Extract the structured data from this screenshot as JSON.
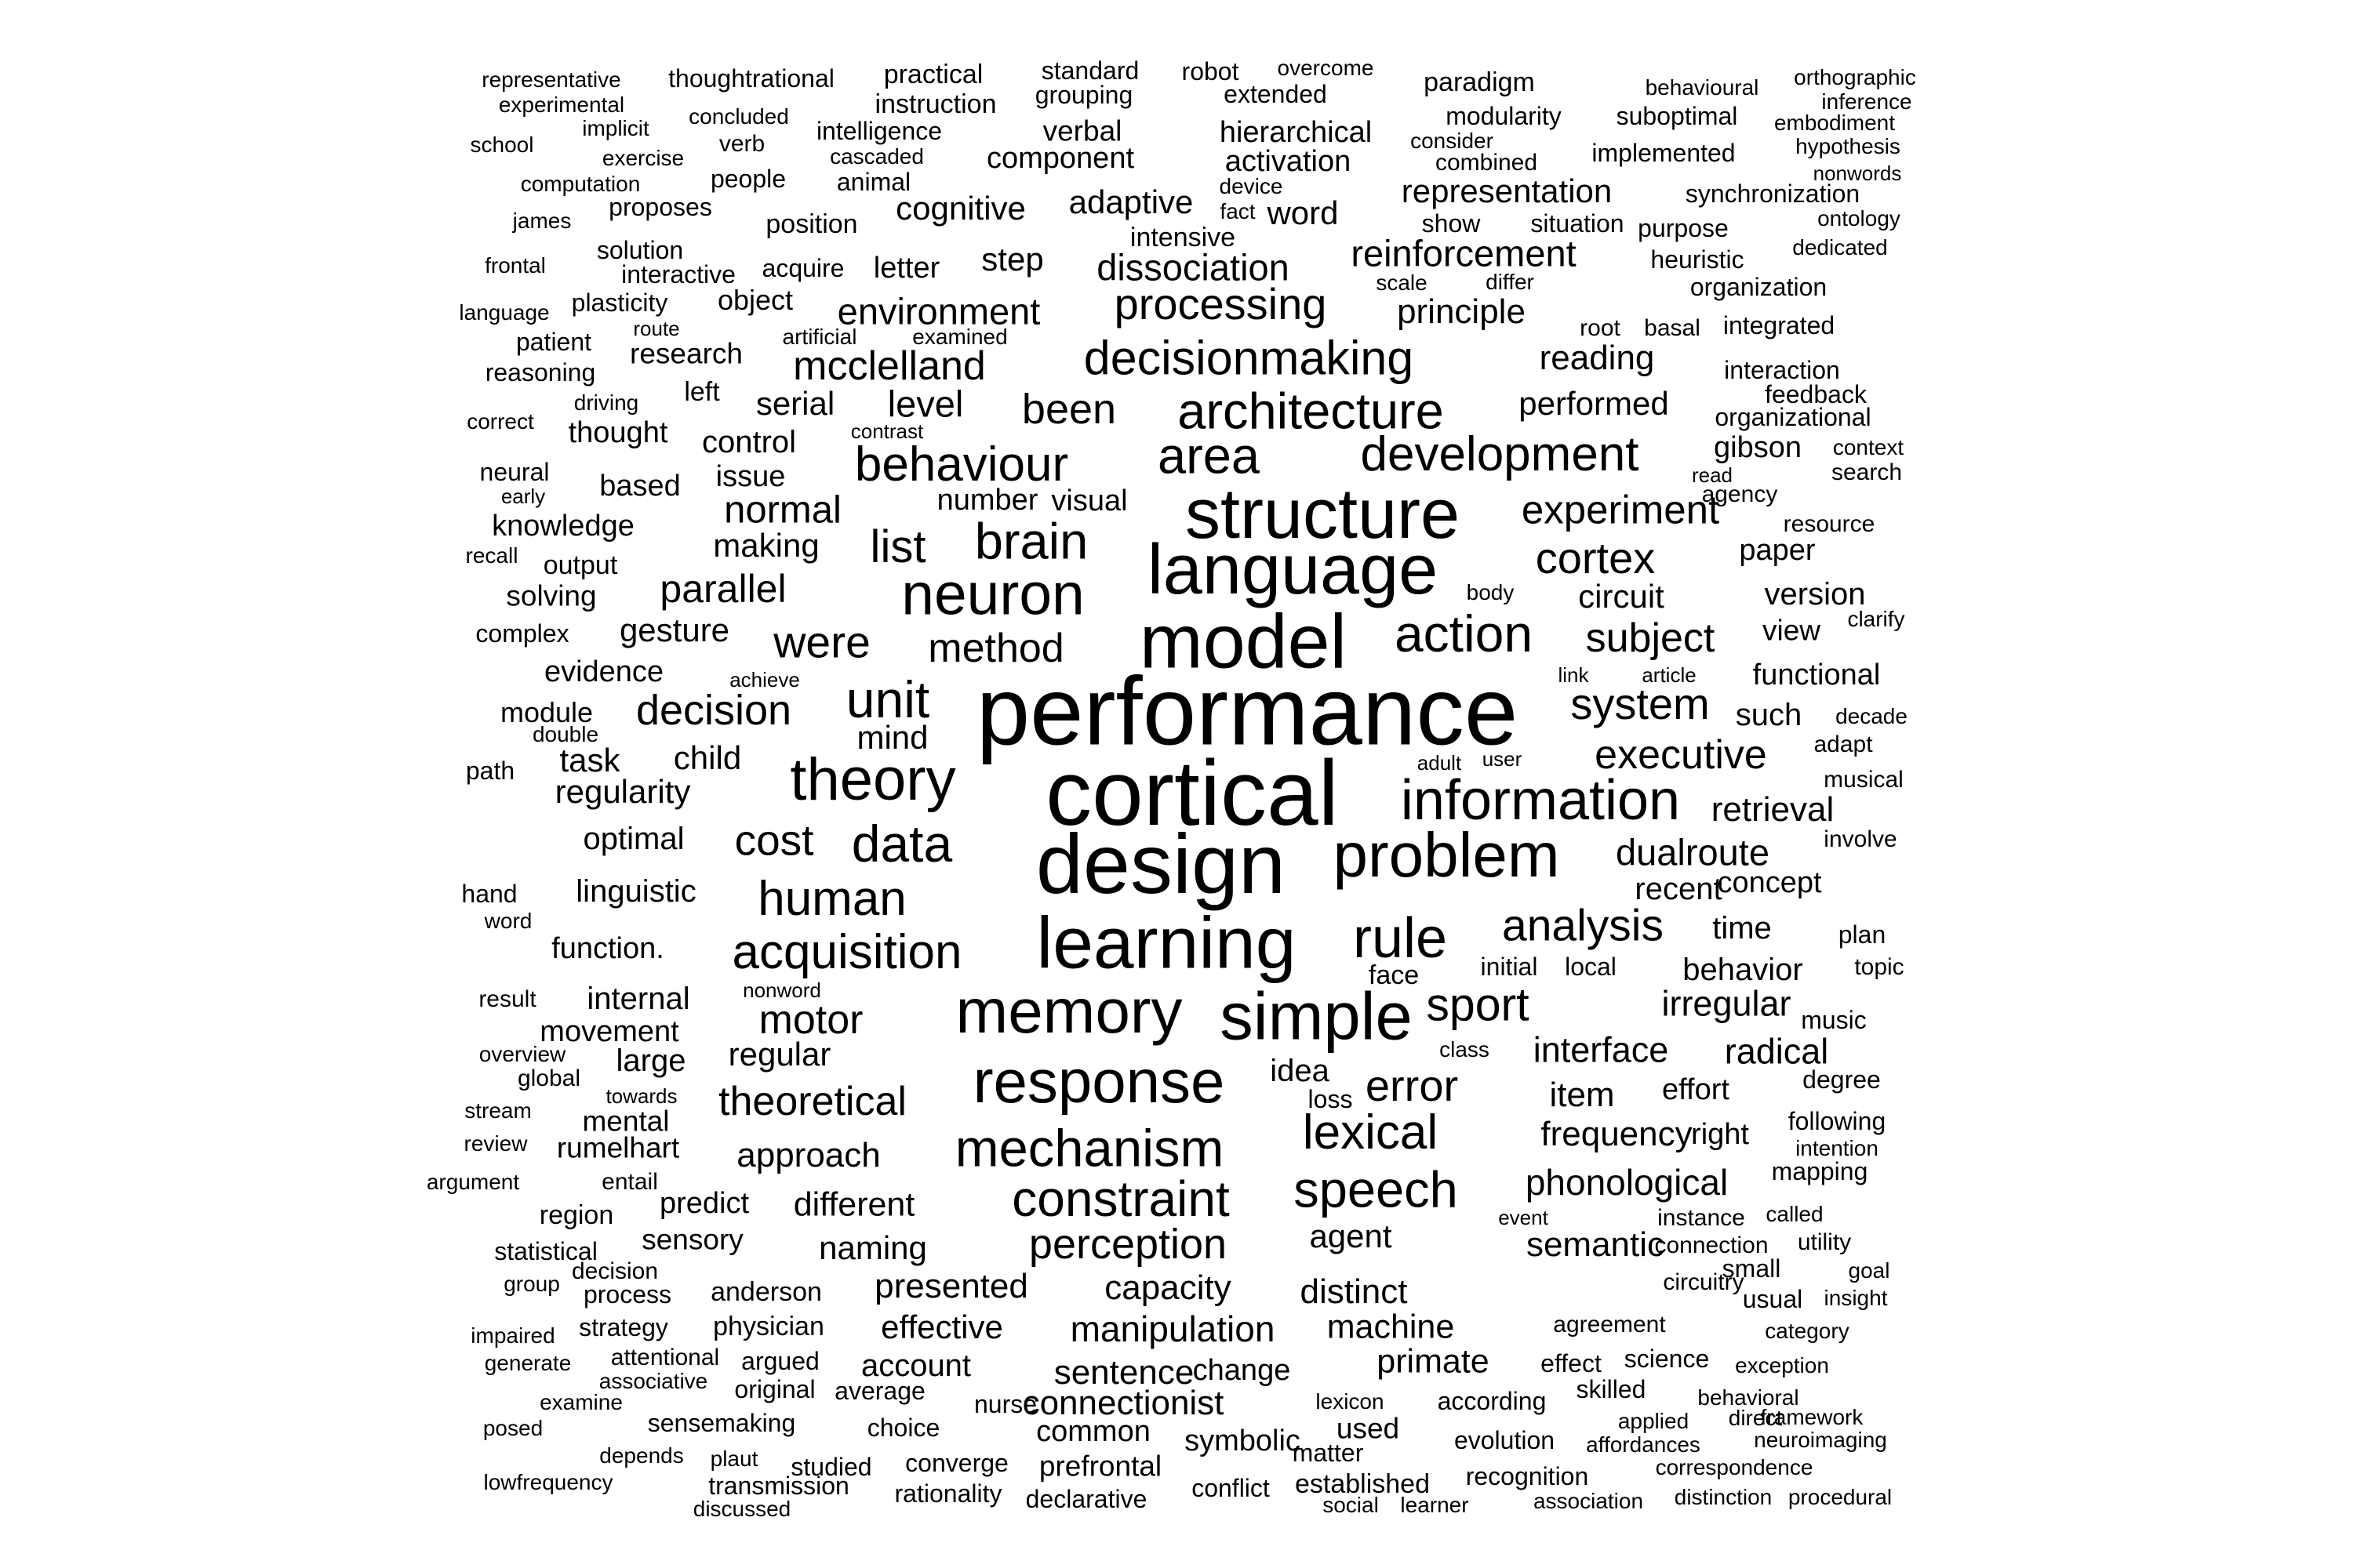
{
  "word_cloud": {
    "words": [
      "performance",
      "cortical",
      "design",
      "model",
      "language",
      "structure",
      "learning",
      "memory",
      "simple",
      "response",
      "neuron",
      "theory",
      "problem",
      "information",
      "mechanism",
      "rule",
      "architecture",
      "area",
      "development",
      "behaviour",
      "brain",
      "action",
      "decisionmaking",
      "acquisition",
      "lexical",
      "speech",
      "constraint",
      "unit",
      "data",
      "human",
      "analysis",
      "sport",
      "system",
      "cortex",
      "experiment",
      "processing",
      "error",
      "perception",
      "were",
      "method",
      "decision",
      "executive",
      "subject",
      "list",
      "mcclelland",
      "been",
      "motor",
      "cost",
      "theoretical",
      "parallel",
      "normal",
      "dualroute",
      "retrieval",
      "dissociation",
      "reinforcement",
      "environment",
      "phonological",
      "manipulation",
      "semantic",
      "irregular",
      "interface",
      "radical",
      "frequency",
      "approach",
      "distinct",
      "presented",
      "capacity",
      "sentence",
      "connectionist",
      "machine",
      "primate",
      "agent",
      "different",
      "naming",
      "mind",
      "child",
      "task",
      "regularity",
      "optimal",
      "linguistic",
      "function.",
      "internal",
      "movement",
      "large",
      "regular",
      "mental",
      "rumelhart",
      "predict",
      "sensory",
      "gesture",
      "evidence",
      "making",
      "issue",
      "control",
      "serial",
      "level",
      "step",
      "letter",
      "cognitive",
      "adaptive",
      "word",
      "representation",
      "component",
      "verbal",
      "hierarchical",
      "activation",
      "principle",
      "reading",
      "performed",
      "gibson",
      "circuit",
      "version",
      "paper",
      "functional",
      "view",
      "such",
      "recent",
      "concept",
      "time",
      "behavior",
      "item",
      "effort",
      "right",
      "following",
      "effective",
      "account",
      "common",
      "change",
      "according",
      "evolution",
      "recognition",
      "prefrontal",
      "symbolic",
      "matter",
      "used",
      "established",
      "conflict",
      "declarative",
      "rationality",
      "transmission",
      "converge",
      "studied",
      "sensemaking",
      "choice",
      "nurse",
      "original",
      "average",
      "argued",
      "physician",
      "anderson",
      "idea",
      "loss",
      "face",
      "initial",
      "local",
      "knowledge",
      "based",
      "thought",
      "solving",
      "output",
      "module",
      "path",
      "research",
      "reasoning",
      "left",
      "object",
      "plasticity",
      "solution",
      "position",
      "people",
      "verb",
      "thoughtrational",
      "representative",
      "experimental",
      "implicit",
      "concluded",
      "school",
      "exercise",
      "computation",
      "proposes",
      "james",
      "frontal",
      "language",
      "patient",
      "correct",
      "driving",
      "neural",
      "early",
      "recall",
      "complex",
      "double",
      "hand",
      "word",
      "result",
      "overview",
      "global",
      "stream",
      "review",
      "argument",
      "entail",
      "region",
      "statistical",
      "group",
      "decision",
      "process",
      "impaired",
      "strategy",
      "generate",
      "attentional",
      "associative",
      "examine",
      "posed",
      "depends",
      "plaut",
      "lowfrequency",
      "discussed",
      "practical",
      "instruction",
      "intelligence",
      "cascaded",
      "animal",
      "standard",
      "grouping",
      "robot",
      "extended",
      "overcome",
      "device",
      "fact",
      "intensive",
      "show",
      "situation",
      "scale",
      "differ",
      "root",
      "basal",
      "paradigm",
      "modularity",
      "consider",
      "combined",
      "implemented",
      "suboptimal",
      "behavioural",
      "orthographic",
      "inference",
      "embodiment",
      "hypothesis",
      "nonwords",
      "synchronization",
      "ontology",
      "purpose",
      "heuristic",
      "dedicated",
      "organization",
      "integrated",
      "interaction",
      "feedback",
      "organizational",
      "context",
      "search",
      "read",
      "agency",
      "resource",
      "clarify",
      "decade",
      "adapt",
      "musical",
      "involve",
      "plan",
      "topic",
      "music",
      "degree",
      "intention",
      "mapping",
      "called",
      "utility",
      "goal",
      "insight",
      "category",
      "exception",
      "framework",
      "neuroimaging",
      "correspondence",
      "procedural",
      "distinction",
      "association",
      "learner",
      "social",
      "lexicon",
      "skilled",
      "effect",
      "science",
      "applied",
      "direct",
      "affordances",
      "behavioral",
      "agreement",
      "circuitry",
      "usual",
      "small",
      "connection",
      "instance",
      "event",
      "class",
      "link",
      "article",
      "body",
      "adult",
      "user",
      "achieve",
      "contrast",
      "number",
      "visual",
      "nonword",
      "towards",
      "route",
      "examined",
      "artificial",
      "acquire",
      "interactive"
    ]
  }
}
